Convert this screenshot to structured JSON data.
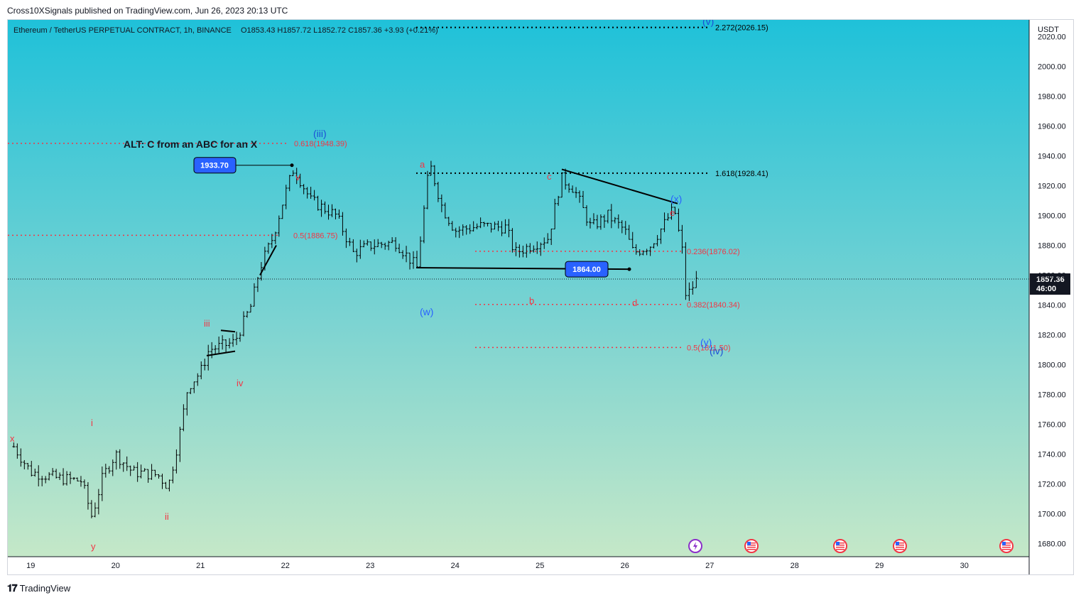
{
  "header": {
    "published": "Cross10XSignals published on TradingView.com, Jun 26, 2023 20:13 UTC"
  },
  "legend": {
    "symbol": "Ethereum / TetherUS PERPETUAL CONTRACT, 1h, BINANCE",
    "ohlc": "O1853.43  H1857.72  L1852.72  C1857.36  +3.93 (+0.21%)"
  },
  "price_axis": {
    "currency": "USDT",
    "ticks": [
      "2020.00",
      "2000.00",
      "1980.00",
      "1960.00",
      "1940.00",
      "1920.00",
      "1900.00",
      "1880.00",
      "1860.00",
      "1840.00",
      "1820.00",
      "1800.00",
      "1780.00",
      "1760.00",
      "1740.00",
      "1720.00",
      "1700.00",
      "1680.00"
    ],
    "current_price": "1857.36",
    "countdown": "46:00"
  },
  "time_axis": {
    "ticks": [
      "19",
      "20",
      "21",
      "22",
      "23",
      "24",
      "25",
      "26",
      "27",
      "28",
      "29",
      "30"
    ]
  },
  "annotations": {
    "alt_note": "ALT: C from an ABC for an X",
    "price_tag_high": "1933.70",
    "price_tag_low": "1864.00",
    "fib_levels": [
      {
        "label": "2.272(2026.15)",
        "price": 2026.15,
        "color": "#000000"
      },
      {
        "label": "1.618(1928.41)",
        "price": 1928.41,
        "color": "#000000"
      },
      {
        "label": "0.618(1948.39)",
        "price": 1948.39,
        "color": "#f23645"
      },
      {
        "label": "0.5(1886.75)",
        "price": 1886.75,
        "color": "#f23645"
      },
      {
        "label": "0.236(1876.02)",
        "price": 1876.02,
        "color": "#f23645"
      },
      {
        "label": "0.382(1840.34)",
        "price": 1840.34,
        "color": "#f23645"
      },
      {
        "label": "0.5(1811.50)",
        "price": 1811.5,
        "color": "#f23645"
      }
    ],
    "wave_labels": [
      {
        "text": "x",
        "color": "#f23645"
      },
      {
        "text": "y",
        "color": "#f23645"
      },
      {
        "text": "i",
        "color": "#f23645"
      },
      {
        "text": "ii",
        "color": "#f23645"
      },
      {
        "text": "iii",
        "color": "#f23645"
      },
      {
        "text": "iv",
        "color": "#f23645"
      },
      {
        "text": "v",
        "color": "#f23645"
      },
      {
        "text": "(iii)",
        "color": "#1c4fd6"
      },
      {
        "text": "a",
        "color": "#f23645"
      },
      {
        "text": "b",
        "color": "#f23645"
      },
      {
        "text": "c",
        "color": "#f23645"
      },
      {
        "text": "d",
        "color": "#f23645"
      },
      {
        "text": "e",
        "color": "#f23645"
      },
      {
        "text": "(w)",
        "color": "#2962ff"
      },
      {
        "text": "(x)",
        "color": "#2962ff"
      },
      {
        "text": "(y)",
        "color": "#2962ff"
      },
      {
        "text": "(iv)",
        "color": "#1c4fd6"
      },
      {
        "text": "(v)",
        "color": "#1c4fd6"
      }
    ]
  },
  "chart_data": {
    "type": "candlestick",
    "symbol": "ETHUSDT.P",
    "interval": "1h",
    "ylim": [
      1675,
      2035
    ],
    "x_dates": [
      "19",
      "20",
      "21",
      "22",
      "23",
      "24",
      "25",
      "26",
      "27",
      "28",
      "29",
      "30"
    ],
    "close_path": [
      {
        "day": 18.8,
        "price": 1745
      },
      {
        "day": 19.0,
        "price": 1728
      },
      {
        "day": 19.3,
        "price": 1724
      },
      {
        "day": 19.6,
        "price": 1722
      },
      {
        "day": 19.72,
        "price": 1698
      },
      {
        "day": 19.85,
        "price": 1725
      },
      {
        "day": 20.0,
        "price": 1740
      },
      {
        "day": 20.2,
        "price": 1728
      },
      {
        "day": 20.5,
        "price": 1726
      },
      {
        "day": 20.62,
        "price": 1718
      },
      {
        "day": 20.75,
        "price": 1752
      },
      {
        "day": 20.85,
        "price": 1785
      },
      {
        "day": 21.0,
        "price": 1795
      },
      {
        "day": 21.1,
        "price": 1810
      },
      {
        "day": 21.4,
        "price": 1815
      },
      {
        "day": 21.6,
        "price": 1840
      },
      {
        "day": 21.7,
        "price": 1865
      },
      {
        "day": 21.85,
        "price": 1885
      },
      {
        "day": 22.0,
        "price": 1915
      },
      {
        "day": 22.1,
        "price": 1932
      },
      {
        "day": 22.3,
        "price": 1910
      },
      {
        "day": 22.6,
        "price": 1900
      },
      {
        "day": 22.8,
        "price": 1875
      },
      {
        "day": 23.0,
        "price": 1880
      },
      {
        "day": 23.3,
        "price": 1882
      },
      {
        "day": 23.55,
        "price": 1865
      },
      {
        "day": 23.7,
        "price": 1935
      },
      {
        "day": 23.85,
        "price": 1905
      },
      {
        "day": 24.0,
        "price": 1890
      },
      {
        "day": 24.3,
        "price": 1893
      },
      {
        "day": 24.6,
        "price": 1892
      },
      {
        "day": 24.7,
        "price": 1875
      },
      {
        "day": 24.9,
        "price": 1880
      },
      {
        "day": 25.1,
        "price": 1885
      },
      {
        "day": 25.25,
        "price": 1925
      },
      {
        "day": 25.4,
        "price": 1918
      },
      {
        "day": 25.6,
        "price": 1892
      },
      {
        "day": 25.8,
        "price": 1900
      },
      {
        "day": 26.0,
        "price": 1890
      },
      {
        "day": 26.1,
        "price": 1875
      },
      {
        "day": 26.3,
        "price": 1880
      },
      {
        "day": 26.45,
        "price": 1893
      },
      {
        "day": 26.58,
        "price": 1905
      },
      {
        "day": 26.68,
        "price": 1875
      },
      {
        "day": 26.72,
        "price": 1845
      },
      {
        "day": 26.85,
        "price": 1857
      }
    ]
  },
  "footer": {
    "brand": "TradingView"
  }
}
